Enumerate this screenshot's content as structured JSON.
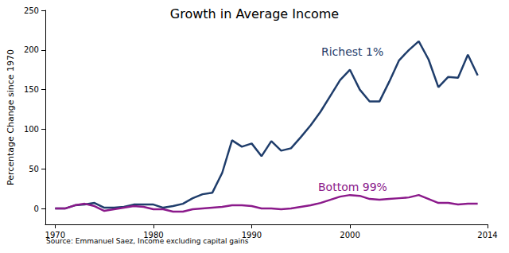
{
  "chart_data": {
    "type": "line",
    "title": "Growth in Average Income",
    "y_label": "Percentage Change since 1970",
    "source": "Source: Emmanuel Saez, Income excluding capital gains",
    "x": [
      1970,
      1971,
      1972,
      1973,
      1974,
      1975,
      1976,
      1977,
      1978,
      1979,
      1980,
      1981,
      1982,
      1983,
      1984,
      1985,
      1986,
      1987,
      1988,
      1989,
      1990,
      1991,
      1992,
      1993,
      1994,
      1995,
      1996,
      1997,
      1998,
      1999,
      2000,
      2001,
      2002,
      2003,
      2004,
      2005,
      2006,
      2007,
      2008,
      2009,
      2010,
      2011,
      2012,
      2013
    ],
    "series": [
      {
        "name": "Richest 1%",
        "color": "#1f3d6b",
        "values": [
          0,
          0,
          4,
          5,
          7,
          1,
          1,
          2,
          5,
          5,
          5,
          1,
          3,
          6,
          13,
          18,
          20,
          45,
          86,
          78,
          82,
          66,
          85,
          73,
          76,
          90,
          105,
          122,
          142,
          162,
          175,
          150,
          135,
          135,
          160,
          187,
          200,
          211,
          188,
          153,
          166,
          165,
          194,
          168
        ]
      },
      {
        "name": "Bottom 99%",
        "color": "#8b1a8b",
        "values": [
          0,
          0,
          4,
          6,
          3,
          -3,
          -1,
          1,
          3,
          2,
          -1,
          -1,
          -4,
          -4,
          -1,
          0,
          1,
          2,
          4,
          4,
          3,
          0,
          0,
          -1,
          0,
          2,
          4,
          7,
          11,
          15,
          17,
          16,
          12,
          11,
          12,
          13,
          14,
          17,
          12,
          7,
          7,
          5,
          6,
          6
        ]
      }
    ],
    "xlim": [
      1969,
      2014
    ],
    "xticks": [
      1970,
      1980,
      1990,
      2000,
      2014
    ],
    "ylim": [
      -20,
      250
    ],
    "yticks": [
      0,
      50,
      100,
      150,
      200,
      250
    ],
    "grid": false
  }
}
